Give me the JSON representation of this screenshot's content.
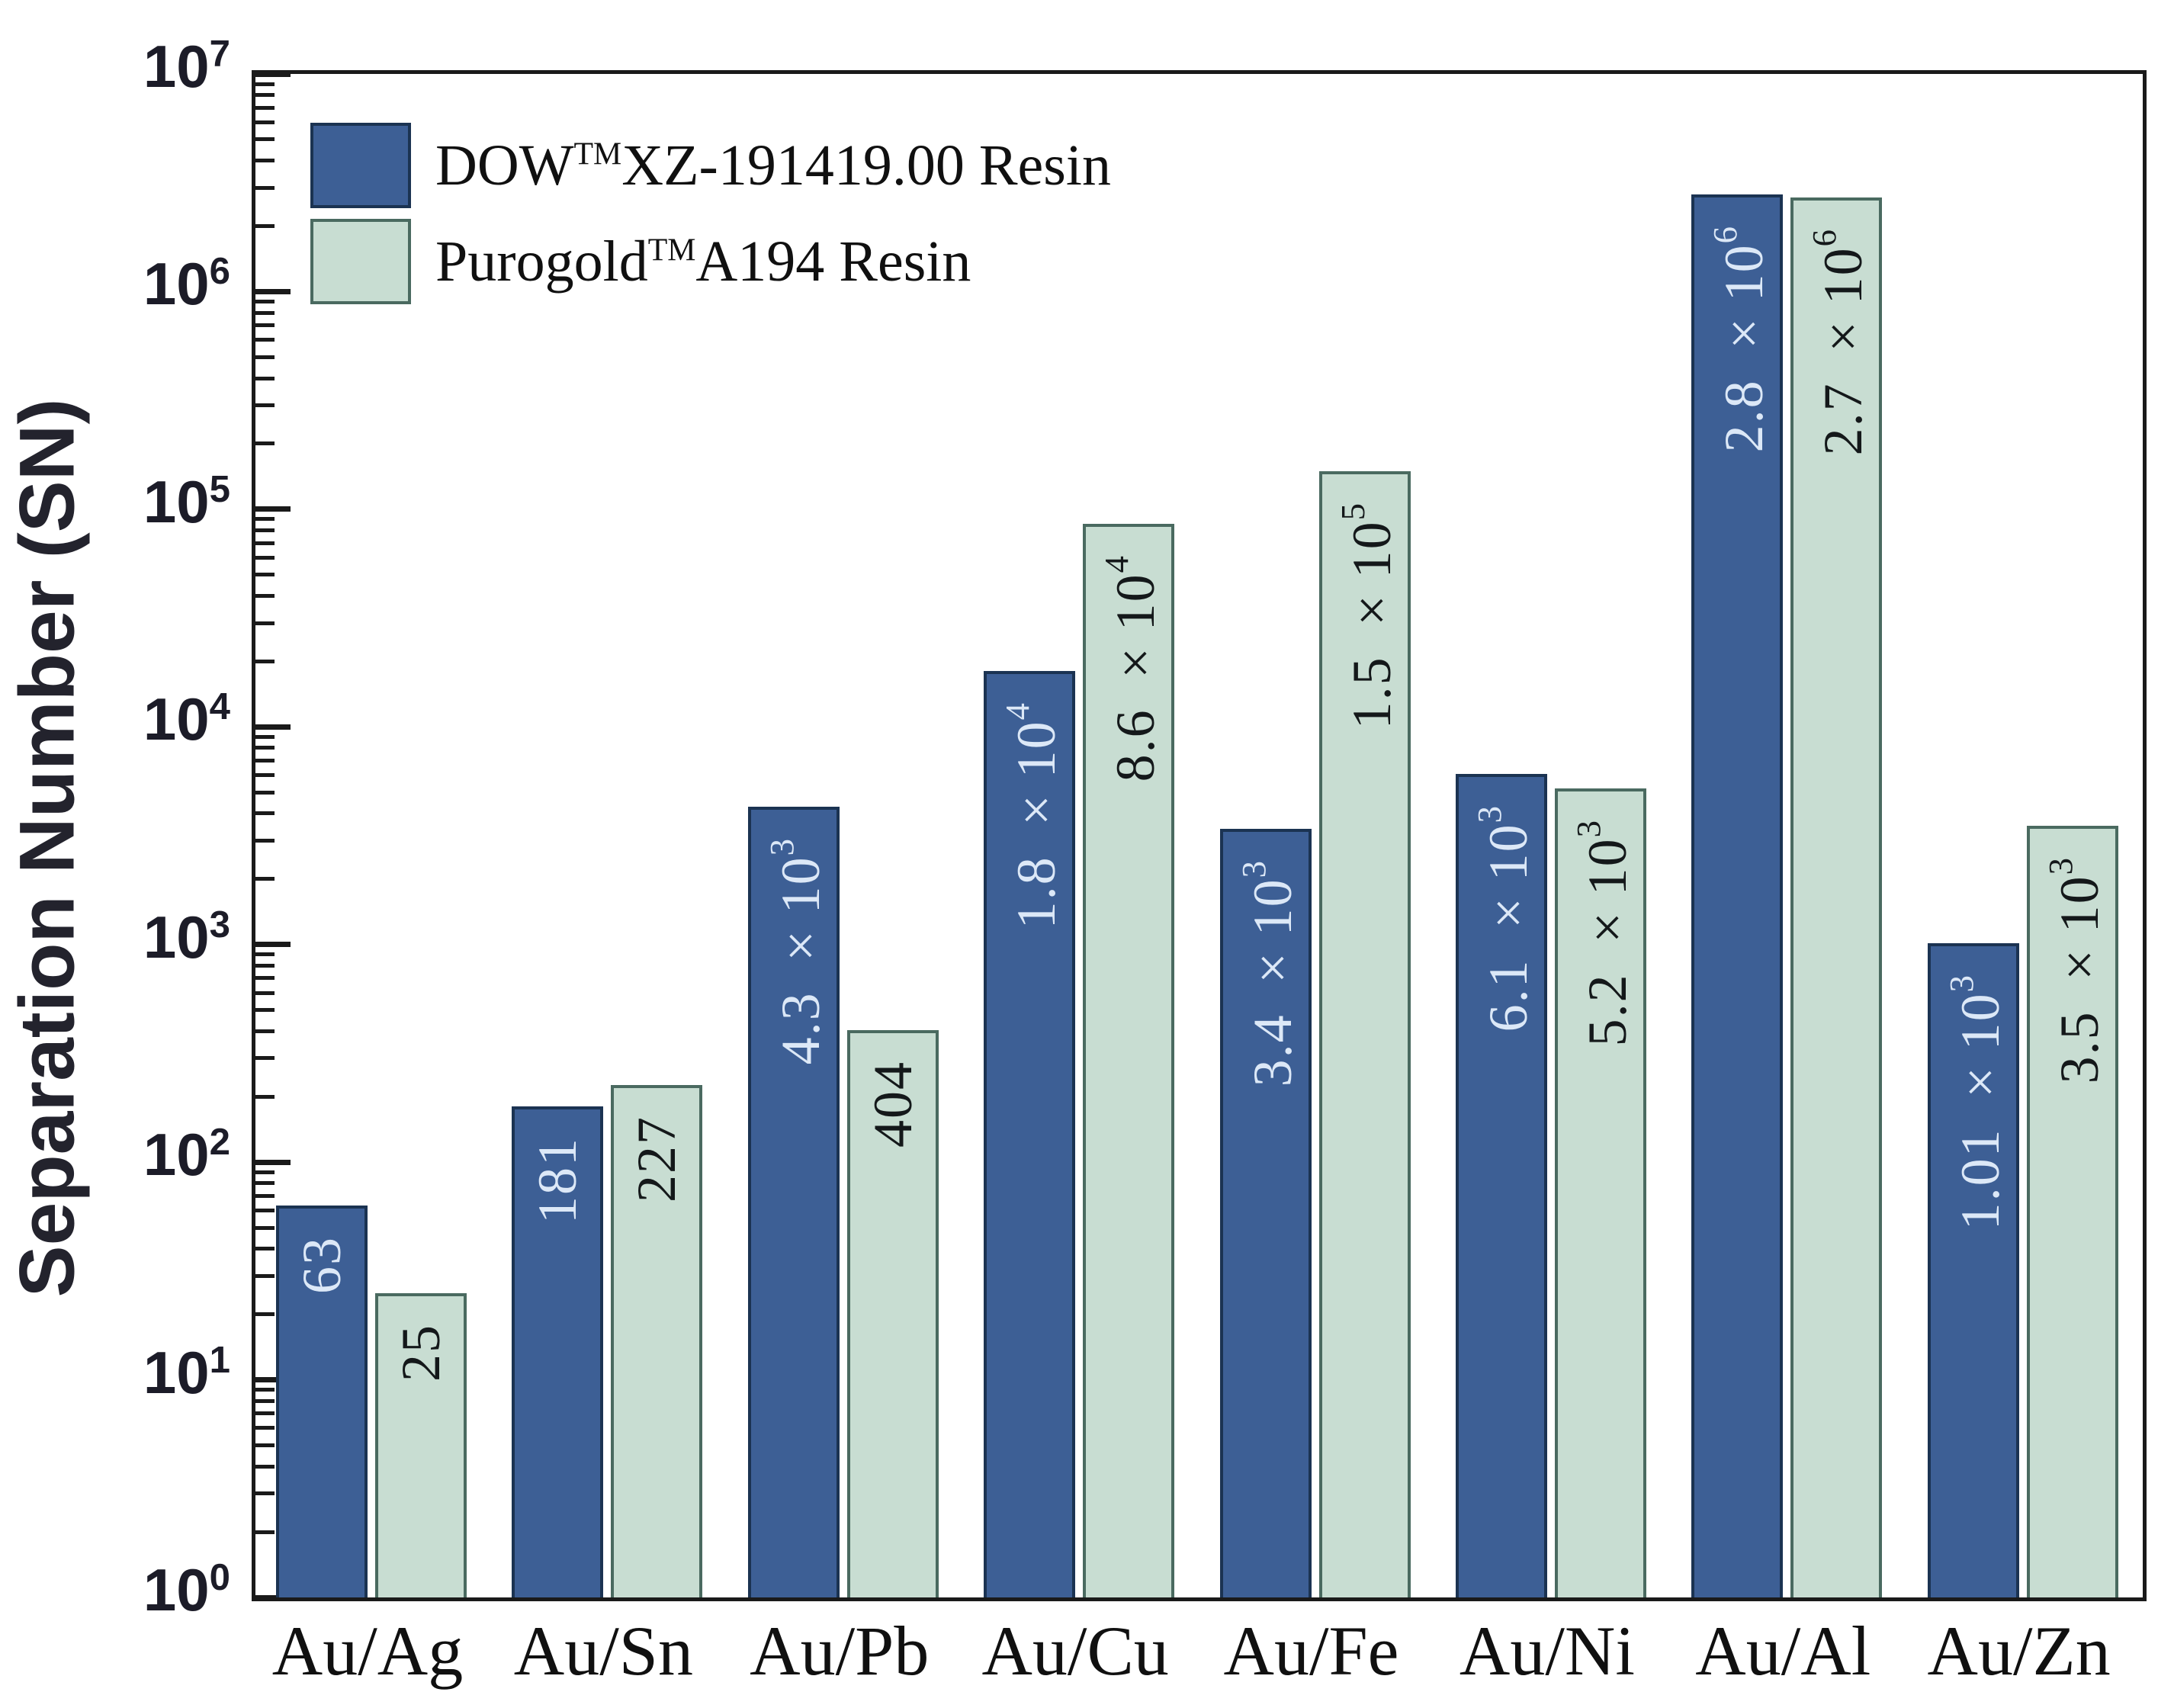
{
  "chart_data": {
    "type": "bar",
    "title": "",
    "xlabel": "",
    "ylabel": "Separation Number (SN)",
    "y_scale": "log10",
    "ylim": [
      1,
      10000000
    ],
    "y_tick_base": "10",
    "y_tick_exponents": [
      0,
      1,
      2,
      3,
      4,
      5,
      6,
      7
    ],
    "grid": false,
    "legend_position": "top-left-inside",
    "categories": [
      "Au/Ag",
      "Au/Sn",
      "Au/Pb",
      "Au/Cu",
      "Au/Fe",
      "Au/Ni",
      "Au/Al",
      "Au/Zn"
    ],
    "series": [
      {
        "name_pre": "DOW",
        "name_sup": "TM",
        "name_post": "XZ-191419.00 Resin",
        "color": "#3d5f95",
        "border_color": "#1b3352",
        "label_color": "#dce8f7",
        "values": [
          63,
          181,
          4300,
          18000,
          3400,
          6100,
          2800000,
          1010
        ],
        "value_labels": [
          {
            "mantissa": "63",
            "exponent": ""
          },
          {
            "mantissa": "181",
            "exponent": ""
          },
          {
            "mantissa": "4.3 ×10",
            "exponent": "3"
          },
          {
            "mantissa": "1.8 ×10",
            "exponent": "4"
          },
          {
            "mantissa": "3.4 ×10",
            "exponent": "3"
          },
          {
            "mantissa": "6.1 ×10",
            "exponent": "3"
          },
          {
            "mantissa": "2.8 ×10",
            "exponent": "6"
          },
          {
            "mantissa": "1.01 ×10",
            "exponent": "3"
          }
        ]
      },
      {
        "name_pre": "Purogold",
        "name_sup": "TM",
        "name_post": "A194 Resin",
        "color": "#c8ddd2",
        "border_color": "#4a6a60",
        "label_color": "#14181a",
        "values": [
          25,
          227,
          404,
          86000,
          150000,
          5200,
          2700000,
          3500
        ],
        "value_labels": [
          {
            "mantissa": "25",
            "exponent": ""
          },
          {
            "mantissa": "227",
            "exponent": ""
          },
          {
            "mantissa": "404",
            "exponent": ""
          },
          {
            "mantissa": "8.6 ×10",
            "exponent": "4"
          },
          {
            "mantissa": "1.5 ×10",
            "exponent": "5"
          },
          {
            "mantissa": "5.2 ×10",
            "exponent": "3"
          },
          {
            "mantissa": "2.7 ×10",
            "exponent": "6"
          },
          {
            "mantissa": "3.5 ×10",
            "exponent": "3"
          }
        ]
      }
    ]
  },
  "colors": {
    "axis": "#1a1a1a",
    "background": "#ffffff",
    "tick_label": "#1c1c28"
  }
}
